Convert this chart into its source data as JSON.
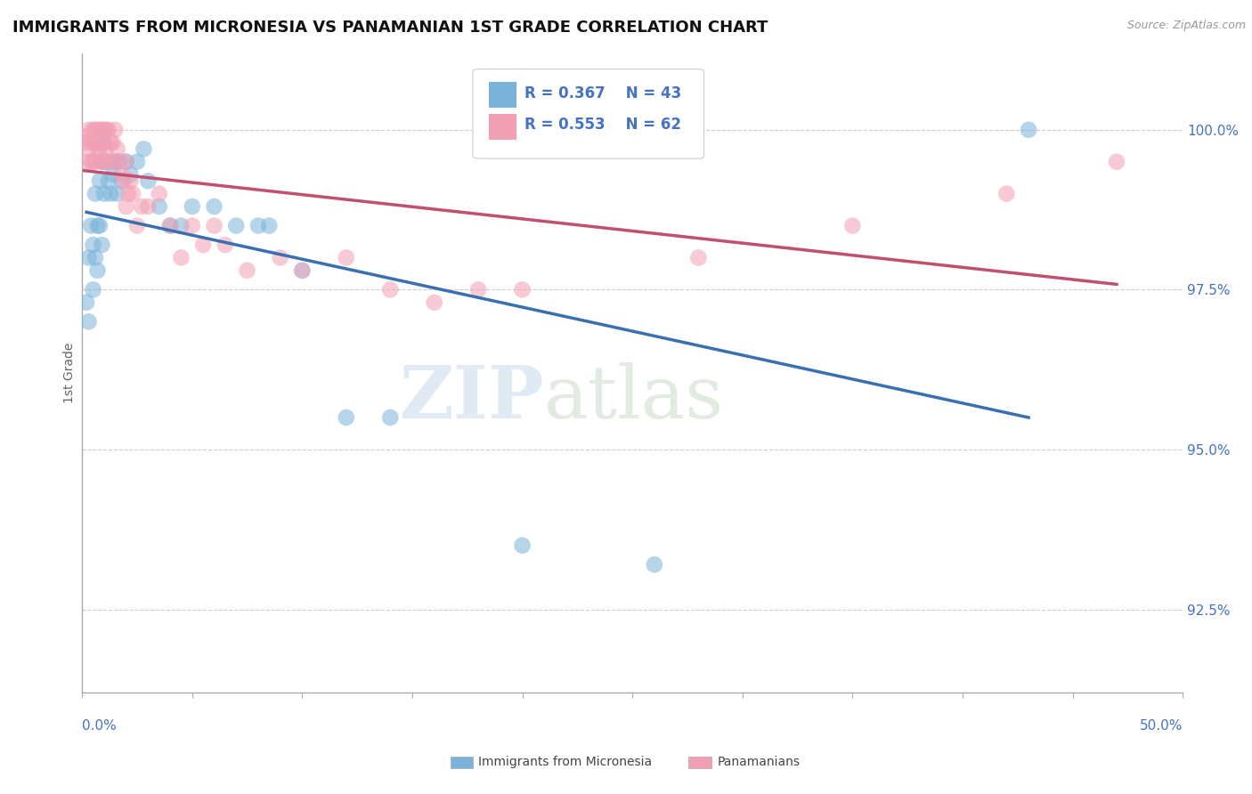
{
  "title": "IMMIGRANTS FROM MICRONESIA VS PANAMANIAN 1ST GRADE CORRELATION CHART",
  "source": "Source: ZipAtlas.com",
  "ylabel": "1st Grade",
  "xlim": [
    0.0,
    50.0
  ],
  "ylim": [
    91.2,
    101.2
  ],
  "yticks": [
    92.5,
    95.0,
    97.5,
    100.0
  ],
  "color_blue": "#7ab3d9",
  "color_pink": "#f2a0b5",
  "color_blue_line": "#3a6fb0",
  "color_pink_line": "#c05070",
  "color_axis_text": "#4472C4",
  "background": "#ffffff",
  "blue_x": [
    0.2,
    0.3,
    0.3,
    0.4,
    0.5,
    0.5,
    0.6,
    0.6,
    0.7,
    0.7,
    0.8,
    0.8,
    0.9,
    0.9,
    1.0,
    1.0,
    1.1,
    1.2,
    1.3,
    1.4,
    1.5,
    1.6,
    1.7,
    1.8,
    2.0,
    2.2,
    2.5,
    2.8,
    3.0,
    3.5,
    4.0,
    4.5,
    5.0,
    6.0,
    7.0,
    8.0,
    8.5,
    10.0,
    12.0,
    14.0,
    20.0,
    26.0,
    43.0
  ],
  "blue_y": [
    97.3,
    97.0,
    98.0,
    98.5,
    98.2,
    97.5,
    99.0,
    98.0,
    98.5,
    97.8,
    99.2,
    98.5,
    99.5,
    98.2,
    99.8,
    99.0,
    99.5,
    99.2,
    99.0,
    99.3,
    99.5,
    99.0,
    99.5,
    99.2,
    99.5,
    99.3,
    99.5,
    99.7,
    99.2,
    98.8,
    98.5,
    98.5,
    98.8,
    98.8,
    98.5,
    98.5,
    98.5,
    97.8,
    95.5,
    95.5,
    93.5,
    93.2,
    100.0
  ],
  "pink_x": [
    0.1,
    0.2,
    0.2,
    0.3,
    0.3,
    0.4,
    0.4,
    0.5,
    0.5,
    0.5,
    0.6,
    0.6,
    0.6,
    0.7,
    0.7,
    0.8,
    0.8,
    0.8,
    0.9,
    0.9,
    1.0,
    1.0,
    1.0,
    1.1,
    1.1,
    1.2,
    1.2,
    1.3,
    1.4,
    1.5,
    1.5,
    1.6,
    1.7,
    1.8,
    1.9,
    2.0,
    2.0,
    2.1,
    2.2,
    2.3,
    2.5,
    2.7,
    3.0,
    3.5,
    4.0,
    4.5,
    5.0,
    5.5,
    6.0,
    6.5,
    7.5,
    9.0,
    10.0,
    12.0,
    14.0,
    16.0,
    18.0,
    20.0,
    28.0,
    35.0,
    42.0,
    47.0
  ],
  "pink_y": [
    99.8,
    99.5,
    99.9,
    99.7,
    100.0,
    99.5,
    99.8,
    100.0,
    99.8,
    99.5,
    100.0,
    99.8,
    99.5,
    100.0,
    99.7,
    100.0,
    99.8,
    99.6,
    100.0,
    99.5,
    100.0,
    99.8,
    99.5,
    100.0,
    99.7,
    100.0,
    99.5,
    99.8,
    99.8,
    100.0,
    99.5,
    99.7,
    99.5,
    99.3,
    99.2,
    99.5,
    98.8,
    99.0,
    99.2,
    99.0,
    98.5,
    98.8,
    98.8,
    99.0,
    98.5,
    98.0,
    98.5,
    98.2,
    98.5,
    98.2,
    97.8,
    98.0,
    97.8,
    98.0,
    97.5,
    97.3,
    97.5,
    97.5,
    98.0,
    98.5,
    99.0,
    99.5
  ]
}
